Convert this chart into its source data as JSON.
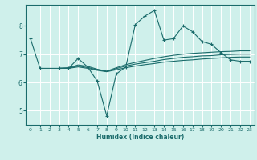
{
  "xlabel": "Humidex (Indice chaleur)",
  "x_ticks": [
    0,
    1,
    2,
    3,
    4,
    5,
    6,
    7,
    8,
    9,
    10,
    11,
    12,
    13,
    14,
    15,
    16,
    17,
    18,
    19,
    20,
    21,
    22,
    23
  ],
  "xlim": [
    -0.5,
    23.5
  ],
  "ylim": [
    4.5,
    8.75
  ],
  "y_ticks": [
    5,
    6,
    7,
    8
  ],
  "bg_color": "#cff0eb",
  "line_color": "#1a6b6b",
  "grid_color": "#ffffff",
  "lines": [
    {
      "x": [
        0,
        1,
        3,
        4,
        5,
        6,
        7,
        8,
        9,
        10,
        11,
        12,
        13,
        14,
        15,
        16,
        17,
        18,
        19,
        20,
        21,
        22,
        23
      ],
      "y": [
        7.55,
        6.5,
        6.5,
        6.5,
        6.85,
        6.55,
        6.05,
        4.82,
        6.3,
        6.55,
        8.05,
        8.35,
        8.55,
        7.5,
        7.55,
        8.0,
        7.8,
        7.45,
        7.35,
        7.05,
        6.8,
        6.75,
        6.75
      ],
      "marker": "+"
    },
    {
      "x": [
        3,
        4,
        5,
        6,
        7,
        8,
        9,
        10,
        11,
        12,
        13,
        14,
        15,
        16,
        17,
        18,
        19,
        20,
        21,
        22,
        23
      ],
      "y": [
        6.5,
        6.5,
        6.55,
        6.5,
        6.43,
        6.38,
        6.45,
        6.52,
        6.58,
        6.63,
        6.67,
        6.72,
        6.75,
        6.78,
        6.8,
        6.83,
        6.85,
        6.87,
        6.89,
        6.9,
        6.9
      ],
      "marker": null
    },
    {
      "x": [
        3,
        4,
        5,
        6,
        7,
        8,
        9,
        10,
        11,
        12,
        13,
        14,
        15,
        16,
        17,
        18,
        19,
        20,
        21,
        22,
        23
      ],
      "y": [
        6.5,
        6.52,
        6.62,
        6.57,
        6.47,
        6.4,
        6.52,
        6.63,
        6.71,
        6.78,
        6.85,
        6.91,
        6.96,
        7.0,
        7.03,
        7.05,
        7.07,
        7.09,
        7.1,
        7.12,
        7.12
      ],
      "marker": null
    },
    {
      "x": [
        3,
        4,
        5,
        6,
        7,
        8,
        9,
        10,
        11,
        12,
        13,
        14,
        15,
        16,
        17,
        18,
        19,
        20,
        21,
        22,
        23
      ],
      "y": [
        6.5,
        6.51,
        6.58,
        6.53,
        6.45,
        6.39,
        6.49,
        6.58,
        6.65,
        6.7,
        6.75,
        6.81,
        6.85,
        6.89,
        6.91,
        6.94,
        6.95,
        6.98,
        6.99,
        7.0,
        7.0
      ],
      "marker": null
    }
  ]
}
